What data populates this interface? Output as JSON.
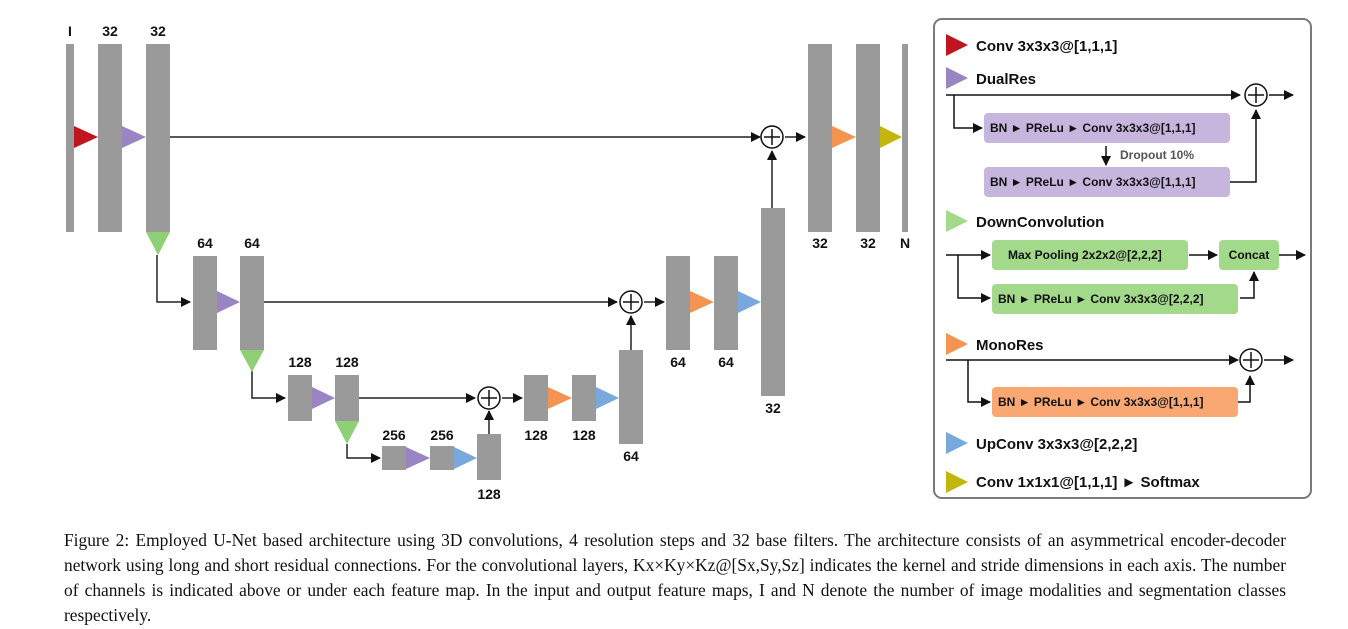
{
  "diagram": {
    "channel_labels": {
      "in_I": "I",
      "in_32a": "32",
      "in_32b": "32",
      "l2_64a": "64",
      "l2_64b": "64",
      "l3_128a": "128",
      "l3_128b": "128",
      "l4_256a": "256",
      "l4_256b": "256",
      "l4_128": "128",
      "d3_128a": "128",
      "d3_128b": "128",
      "d3_64": "64",
      "d2_64a": "64",
      "d2_64b": "64",
      "d2_32": "32",
      "out_32a": "32",
      "out_32b": "32",
      "out_N": "N"
    },
    "colors": {
      "feature_map": "#9a9a9a",
      "conv": "#c0151e",
      "dualres": "#9b84c4",
      "downconv": "#8fd076",
      "monores": "#f59450",
      "upconv": "#79a9dc",
      "final": "#c2b60d",
      "dualres_box": "#c6b6de",
      "downconv_box": "#a3d98b",
      "monores_box": "#f9a874"
    }
  },
  "legend": {
    "conv_label": "Conv 3x3x3@[1,1,1]",
    "dualres_label": "DualRes",
    "dualres_box1": "BN ► PReLu  ► Conv 3x3x3@[1,1,1]",
    "dualres_dropout": "Dropout 10%",
    "dualres_box2": "BN ► PReLu  ► Conv  3x3x3@[1,1,1]",
    "downconv_label": "DownConvolution",
    "downconv_maxpool": "Max Pooling 2x2x2@[2,2,2]",
    "downconv_concat": "Concat",
    "downconv_box": "BN ► PReLu  ► Conv 3x3x3@[2,2,2]",
    "monores_label": "MonoRes",
    "monores_box": "BN ► PReLu  ► Conv 3x3x3@[1,1,1]",
    "upconv_label": "UpConv 3x3x3@[2,2,2]",
    "final_label": "Conv 1x1x1@[1,1,1] ► Softmax"
  },
  "caption": {
    "text": "Figure 2: Employed U-Net based architecture using 3D convolutions, 4 resolution steps and 32 base filters. The architecture consists of an asymmetrical encoder-decoder network using long and short residual connections. For the convolutional layers, Kx×Ky×Kz@[Sx,Sy,Sz] indicates the kernel and stride dimensions in each axis. The number of channels is indicated above or under each feature map. In the input and output feature maps, I and N denote the number of image modalities and segmentation classes respectively."
  }
}
